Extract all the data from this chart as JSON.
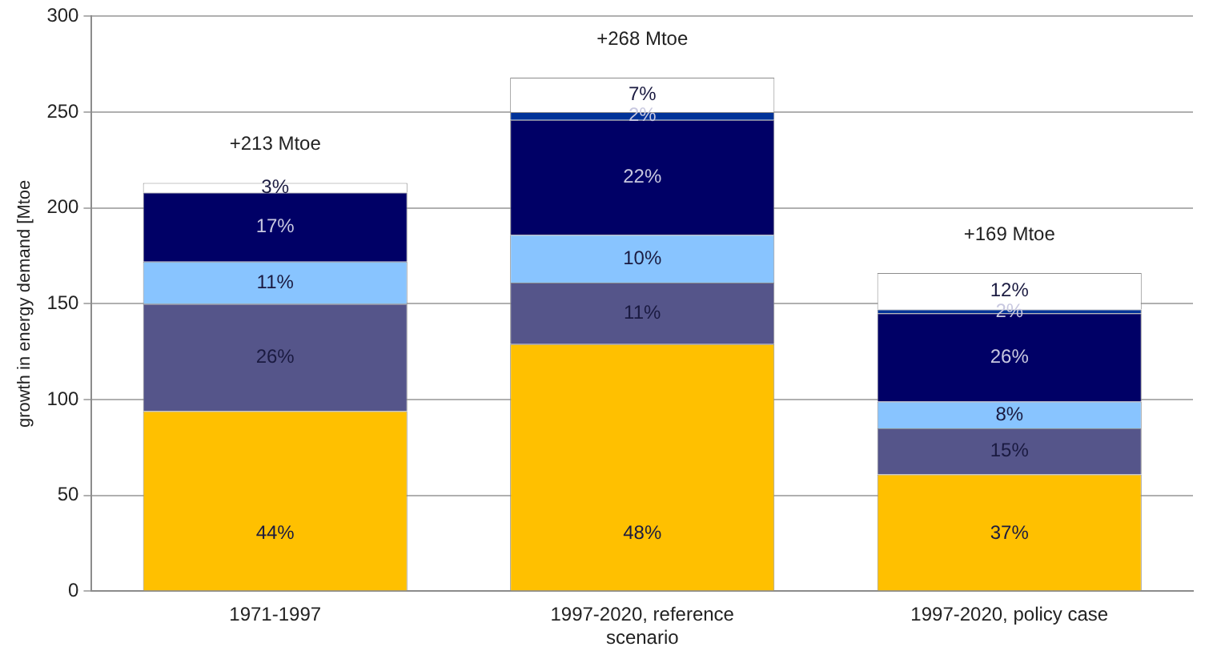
{
  "chart_data": {
    "type": "bar",
    "stacked": true,
    "ylabel": "growth in energy demand [Mtoe",
    "categories": [
      "1971-1997",
      "1997-2020, reference scenario",
      "1997-2020, policy case"
    ],
    "series": [
      {
        "color": "#ffc000",
        "values": [
          94,
          129,
          61
        ]
      },
      {
        "color": "#55558a",
        "values": [
          56,
          32,
          24
        ]
      },
      {
        "color": "#88c4ff",
        "values": [
          22,
          25,
          14
        ]
      },
      {
        "color": "#000066",
        "values": [
          36,
          60,
          46
        ]
      },
      {
        "color": "#003399",
        "values": [
          null,
          4,
          2
        ]
      },
      {
        "color": "#ffffff",
        "values": [
          5,
          18,
          19
        ]
      }
    ],
    "ylim": [
      0,
      300
    ],
    "yticks": [
      0,
      50,
      100,
      150,
      200,
      250,
      300
    ],
    "grid": "y",
    "legend": false,
    "annotations": [
      {
        "text": "+213 Mtoe",
        "x": "1971-1997",
        "y": 213
      },
      {
        "text": "+268 Mtoe",
        "x": "1997-2020, reference scenario",
        "y": 268
      },
      {
        "text": "+169 Mtoe",
        "x": "1997-2020, policy case",
        "y": 166
      },
      {
        "text": "44%",
        "x": "1971-1997",
        "y": 0
      },
      {
        "text": "26%",
        "x": "1971-1997",
        "y": 94
      },
      {
        "text": "11%",
        "x": "1971-1997",
        "y": 150
      },
      {
        "text": "17%",
        "x": "1971-1997",
        "y": 172
      },
      {
        "text": "3%",
        "x": "1971-1997",
        "y": 208
      },
      {
        "text": "48%",
        "x": "1997-2020, reference scenario",
        "y": 0
      },
      {
        "text": "11%",
        "x": "1997-2020, reference scenario",
        "y": 129
      },
      {
        "text": "10%",
        "x": "1997-2020, reference scenario",
        "y": 161
      },
      {
        "text": "22%",
        "x": "1997-2020, reference scenario",
        "y": 186
      },
      {
        "text": "2%",
        "x": "1997-2020, reference scenario",
        "y": 246
      },
      {
        "text": "7%",
        "x": "1997-2020, reference scenario",
        "y": 250
      },
      {
        "text": "37%",
        "x": "1997-2020, policy case",
        "y": 0
      },
      {
        "text": "15%",
        "x": "1997-2020, policy case",
        "y": 61
      },
      {
        "text": "8%",
        "x": "1997-2020, policy case",
        "y": 85
      },
      {
        "text": "26%",
        "x": "1997-2020, policy case",
        "y": 99
      },
      {
        "text": "2%",
        "x": "1997-2020, policy case",
        "y": 145
      },
      {
        "text": "12%",
        "x": "1997-2020, policy case",
        "y": 147
      }
    ]
  }
}
